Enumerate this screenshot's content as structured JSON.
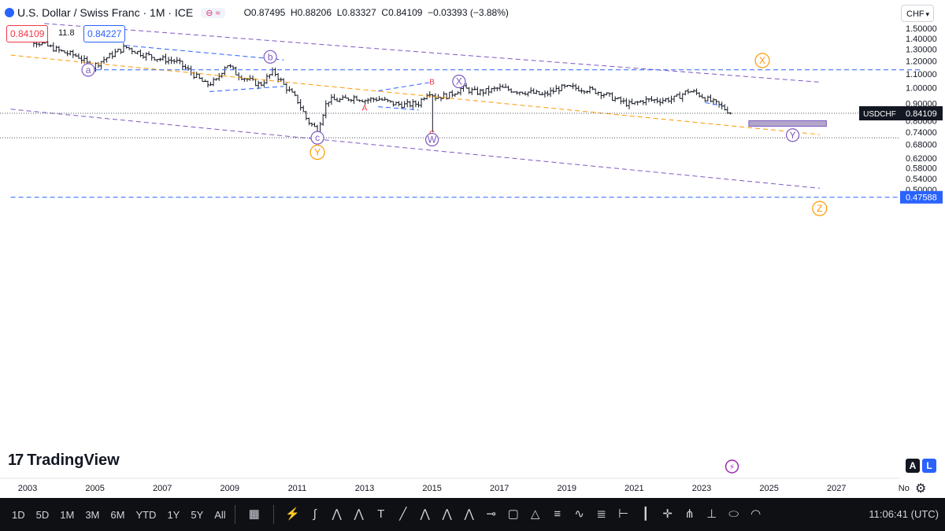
{
  "header": {
    "symbol_title": "U.S. Dollar / Swiss Franc · 1M · ICE",
    "ohlc": {
      "open": "O0.87495",
      "high": "H0.88206",
      "low": "L0.83327",
      "close": "C0.84109",
      "change": "−0.03393 (−3.88%)"
    },
    "sell_price": "0.84109",
    "spread": "11.8",
    "buy_price": "0.84227",
    "currency": "CHF"
  },
  "chart_data": {
    "type": "candlestick",
    "x_labels": [
      "2003",
      "2005",
      "2007",
      "2009",
      "2011",
      "2013",
      "2015",
      "2017",
      "2019",
      "2021",
      "2023",
      "2025",
      "2027",
      "No"
    ],
    "y_ticks": [
      "1.50000",
      "1.40000",
      "1.30000",
      "1.20000",
      "1.10000",
      "1.00000",
      "0.90000",
      "0.80000",
      "0.74000",
      "0.68000",
      "0.62000",
      "0.58000",
      "0.54000",
      "0.50000"
    ],
    "last_price_label": {
      "symbol": "USDCHF",
      "value": "0.84109"
    },
    "low_line_label": "0.47588",
    "close_path": [
      [
        2002.6,
        1.48
      ],
      [
        2003.0,
        1.4
      ],
      [
        2003.5,
        1.34
      ],
      [
        2004.0,
        1.28
      ],
      [
        2004.5,
        1.24
      ],
      [
        2004.9,
        1.15
      ],
      [
        2005.3,
        1.22
      ],
      [
        2005.9,
        1.32
      ],
      [
        2006.4,
        1.26
      ],
      [
        2006.9,
        1.22
      ],
      [
        2007.4,
        1.2
      ],
      [
        2007.9,
        1.1
      ],
      [
        2008.3,
        1.02
      ],
      [
        2008.6,
        1.05
      ],
      [
        2008.9,
        1.18
      ],
      [
        2009.2,
        1.1
      ],
      [
        2009.6,
        1.05
      ],
      [
        2009.9,
        1.02
      ],
      [
        2010.3,
        1.12
      ],
      [
        2010.6,
        1.02
      ],
      [
        2011.0,
        0.92
      ],
      [
        2011.3,
        0.8
      ],
      [
        2011.6,
        0.75
      ],
      [
        2011.9,
        0.92
      ],
      [
        2012.3,
        0.92
      ],
      [
        2012.7,
        0.94
      ],
      [
        2013.0,
        0.92
      ],
      [
        2013.4,
        0.93
      ],
      [
        2013.8,
        0.9
      ],
      [
        2014.2,
        0.89
      ],
      [
        2014.6,
        0.9
      ],
      [
        2014.9,
        0.98
      ],
      [
        2015.1,
        0.94
      ],
      [
        2015.5,
        0.95
      ],
      [
        2015.9,
        1.0
      ],
      [
        2016.3,
        0.97
      ],
      [
        2016.7,
        0.98
      ],
      [
        2017.0,
        1.0
      ],
      [
        2017.5,
        0.98
      ],
      [
        2017.9,
        0.97
      ],
      [
        2018.3,
        0.95
      ],
      [
        2018.8,
        1.0
      ],
      [
        2019.2,
        1.0
      ],
      [
        2019.6,
        0.99
      ],
      [
        2020.0,
        0.97
      ],
      [
        2020.5,
        0.92
      ],
      [
        2020.9,
        0.89
      ],
      [
        2021.3,
        0.92
      ],
      [
        2021.8,
        0.92
      ],
      [
        2022.2,
        0.93
      ],
      [
        2022.6,
        0.98
      ],
      [
        2022.9,
        0.96
      ],
      [
        2023.2,
        0.92
      ],
      [
        2023.5,
        0.89
      ],
      [
        2023.9,
        0.84
      ]
    ],
    "spike_low": {
      "x": 2015.0,
      "low": 0.74
    },
    "wave_labels": [
      {
        "text": "a",
        "x": 2004.8,
        "y": 1.13,
        "color": "#7e57c2",
        "circled": true
      },
      {
        "text": "b",
        "x": 2010.2,
        "y": 1.235,
        "color": "#7e57c2",
        "circled": true
      },
      {
        "text": "c",
        "x": 2011.6,
        "y": 0.712,
        "color": "#7e57c2",
        "circled": true
      },
      {
        "text": "Y",
        "x": 2011.6,
        "y": 0.645,
        "color": "#ff9800",
        "circled": true
      },
      {
        "text": "A",
        "x": 2013.0,
        "y": 0.875,
        "color": "#f23645",
        "circled": false
      },
      {
        "text": "B",
        "x": 2015.0,
        "y": 1.045,
        "color": "#f23645",
        "circled": false
      },
      {
        "text": "C",
        "x": 2015.0,
        "y": 0.735,
        "color": "#f23645",
        "circled": false
      },
      {
        "text": "W",
        "x": 2015.0,
        "y": 0.703,
        "color": "#7e57c2",
        "circled": true
      },
      {
        "text": "X",
        "x": 2015.8,
        "y": 1.045,
        "color": "#7e57c2",
        "circled": true
      },
      {
        "text": "X",
        "x": 2024.8,
        "y": 1.205,
        "color": "#ff9800",
        "circled": true
      },
      {
        "text": "Y",
        "x": 2025.7,
        "y": 0.725,
        "color": "#7e57c2",
        "circled": true
      },
      {
        "text": "Z",
        "x": 2026.5,
        "y": 0.44,
        "color": "#ff9800",
        "circled": true
      }
    ],
    "colors": {
      "candles": "#131722",
      "purple_dash": "#7e57c2",
      "orange_dash": "#ff9800",
      "blue_dash": "#2962ff",
      "target_box": "#b2a7c9"
    }
  },
  "bottom": {
    "logo_text": "TradingView",
    "btn_a": "A",
    "btn_l": "L",
    "timeframes": [
      "1D",
      "5D",
      "1M",
      "3M",
      "6M",
      "YTD",
      "1Y",
      "5Y",
      "All"
    ],
    "clock": "11:06:41 (UTC)"
  }
}
